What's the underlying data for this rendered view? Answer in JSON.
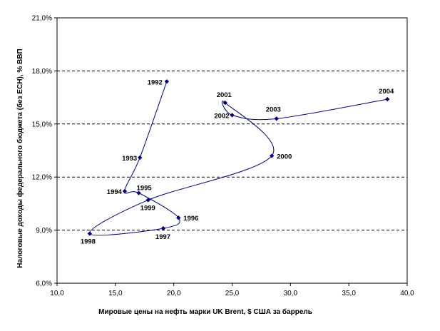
{
  "chart_data": {
    "type": "scatter",
    "connected": true,
    "title": "",
    "xlabel": "Мировые цены на нефть марки UK Brent, $ США за баррель",
    "ylabel": "Налоговые доходы федерального бюджета (без ЕСН), % ВВП",
    "xlim": [
      10,
      40
    ],
    "ylim": [
      6,
      21
    ],
    "x_ticks": [
      "10,0",
      "15,0",
      "20,0",
      "25,0",
      "30,0",
      "35,0",
      "40,0"
    ],
    "y_ticks": [
      "6,0%",
      "9,0%",
      "12,0%",
      "15,0%",
      "18,0%",
      "21,0%"
    ],
    "grid": "horizontal dashed",
    "legend": "none",
    "series_color": "#00007f",
    "points": [
      {
        "label": "1992",
        "x": 19.4,
        "y": 17.4
      },
      {
        "label": "1993",
        "x": 17.1,
        "y": 13.1
      },
      {
        "label": "1994",
        "x": 15.8,
        "y": 11.2
      },
      {
        "label": "1995",
        "x": 17.0,
        "y": 11.1
      },
      {
        "label": "1996",
        "x": 20.4,
        "y": 9.7
      },
      {
        "label": "1997",
        "x": 19.1,
        "y": 9.1
      },
      {
        "label": "1998",
        "x": 12.8,
        "y": 8.8
      },
      {
        "label": "1999",
        "x": 17.8,
        "y": 10.7
      },
      {
        "label": "2000",
        "x": 28.4,
        "y": 13.2
      },
      {
        "label": "2001",
        "x": 24.4,
        "y": 16.2
      },
      {
        "label": "2002",
        "x": 25.0,
        "y": 15.5
      },
      {
        "label": "2003",
        "x": 28.8,
        "y": 15.3
      },
      {
        "label": "2004",
        "x": 38.3,
        "y": 16.4
      }
    ]
  }
}
